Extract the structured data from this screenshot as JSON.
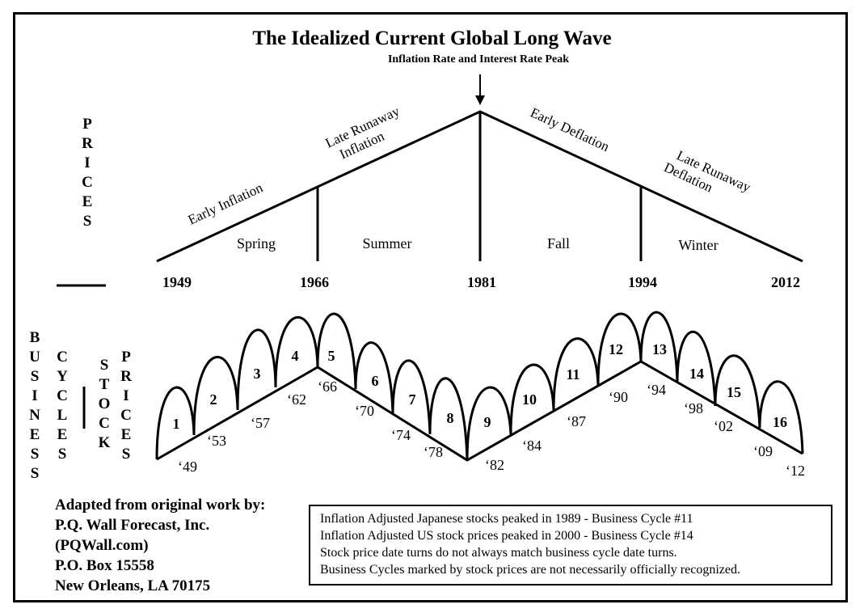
{
  "title": "The Idealized Current Global Long Wave",
  "subtitle": "Inflation Rate and Interest Rate Peak",
  "long_wave": {
    "axis_label": "PRICES",
    "years": [
      "1949",
      "1966",
      "1981",
      "1994",
      "2012"
    ],
    "seasons": [
      "Spring",
      "Summer",
      "Fall",
      "Winter"
    ],
    "phases": [
      "Early Inflation",
      "Late Runaway Inflation",
      "Early Deflation",
      "Late Runaway Deflation"
    ],
    "phase_lines": {
      "late_runaway_inflation": [
        "Late Runaway",
        "Inflation"
      ],
      "late_runaway_deflation": [
        "Late Runaway",
        "Deflation"
      ]
    },
    "peak_year": "1981"
  },
  "business_cycles": {
    "label_business": "BUSINESS",
    "label_cycles": "CYCLES",
    "label_stock": "STOCK",
    "label_prices": "PRICES",
    "cycle_numbers": [
      "1",
      "2",
      "3",
      "4",
      "5",
      "6",
      "7",
      "8",
      "9",
      "10",
      "11",
      "12",
      "13",
      "14",
      "15",
      "16"
    ],
    "turn_years": [
      "‘49",
      "‘53",
      "‘57",
      "‘62",
      "‘66",
      "‘70",
      "‘74",
      "‘78",
      "‘82",
      "‘84",
      "‘87",
      "‘90",
      "‘94",
      "‘98",
      "‘02",
      "‘09",
      "‘12"
    ]
  },
  "credits": {
    "line1": "Adapted from original work by:",
    "line2": "P.Q. Wall Forecast, Inc.",
    "line3": "(PQWall.com)",
    "line4": "P.O. Box 15558",
    "line5": "New Orleans, LA  70175"
  },
  "notes": [
    "Inflation Adjusted Japanese stocks peaked in 1989 - Business Cycle #11",
    "Inflation Adjusted US stock prices peaked in 2000 - Business Cycle #14",
    "Stock price date turns do not always match business cycle date turns.",
    "Business Cycles marked by stock prices are not necessarily officially recognized."
  ]
}
